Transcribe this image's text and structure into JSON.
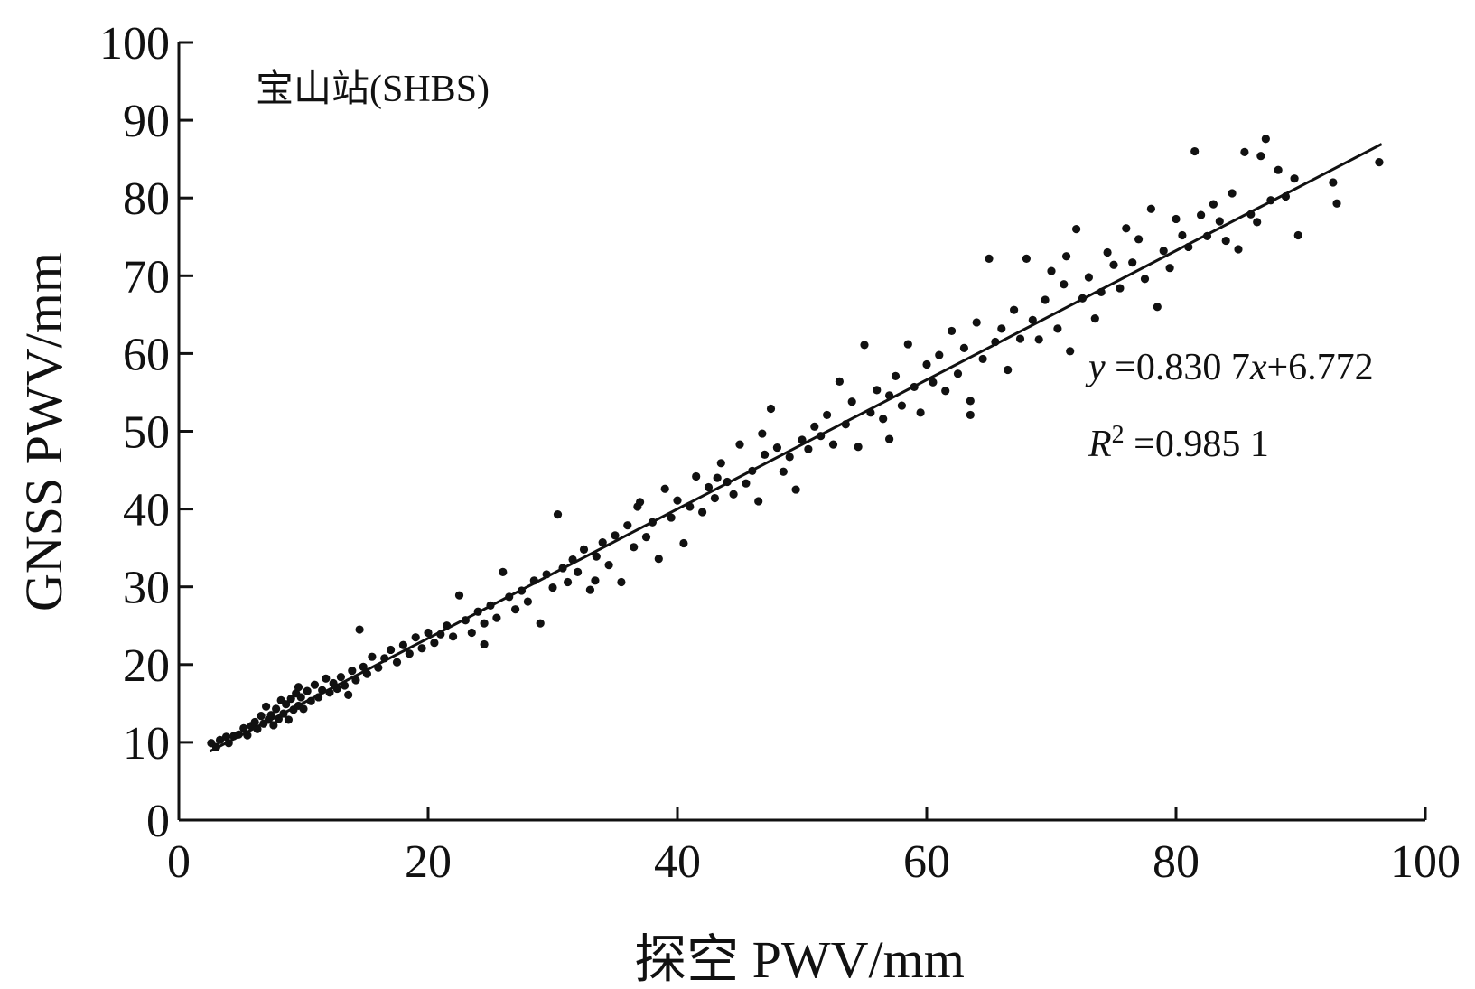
{
  "chart_data": {
    "type": "scatter",
    "title": "",
    "panel_label": "宝山站(SHBS)",
    "xlabel": "探空 PWV/mm",
    "ylabel": "GNSS PWV/mm",
    "xlim": [
      0,
      100
    ],
    "ylim": [
      0,
      100
    ],
    "x_ticks": [
      0,
      20,
      40,
      60,
      80,
      100
    ],
    "y_ticks": [
      0,
      10,
      20,
      30,
      40,
      50,
      60,
      70,
      80,
      90,
      100
    ],
    "grid": false,
    "fit": {
      "slope": 0.8307,
      "intercept": 6.772,
      "x_range": [
        2.5,
        96.5
      ],
      "equation_prefix": "y",
      "equation_body": " =0.830 7",
      "equation_var": "x",
      "equation_suffix": "+6.772",
      "r2_symbol": "R",
      "r2_exp": "2",
      "r2_value": " =0.985 1"
    },
    "points": [
      [
        2.6,
        9.9
      ],
      [
        3.0,
        9.4
      ],
      [
        3.3,
        10.3
      ],
      [
        3.8,
        10.7
      ],
      [
        4.0,
        9.9
      ],
      [
        4.4,
        10.8
      ],
      [
        4.8,
        11.0
      ],
      [
        5.2,
        11.8
      ],
      [
        5.5,
        10.9
      ],
      [
        5.8,
        12.1
      ],
      [
        6.1,
        12.6
      ],
      [
        6.3,
        11.7
      ],
      [
        6.6,
        13.4
      ],
      [
        6.8,
        12.4
      ],
      [
        7.0,
        14.6
      ],
      [
        7.2,
        12.9
      ],
      [
        7.4,
        13.5
      ],
      [
        7.6,
        12.2
      ],
      [
        7.8,
        14.3
      ],
      [
        8.0,
        13.0
      ],
      [
        8.2,
        15.4
      ],
      [
        8.4,
        13.7
      ],
      [
        8.6,
        14.9
      ],
      [
        8.8,
        12.9
      ],
      [
        9.0,
        15.6
      ],
      [
        9.2,
        14.2
      ],
      [
        9.4,
        16.3
      ],
      [
        9.6,
        14.7
      ],
      [
        9.8,
        15.8
      ],
      [
        10.0,
        14.3
      ],
      [
        10.3,
        16.6
      ],
      [
        10.6,
        15.3
      ],
      [
        10.9,
        17.4
      ],
      [
        11.2,
        15.8
      ],
      [
        11.5,
        16.7
      ],
      [
        11.8,
        18.2
      ],
      [
        12.1,
        16.4
      ],
      [
        12.4,
        17.6
      ],
      [
        12.7,
        16.9
      ],
      [
        13.0,
        18.4
      ],
      [
        13.3,
        17.3
      ],
      [
        13.6,
        16.1
      ],
      [
        13.9,
        19.2
      ],
      [
        14.2,
        18.0
      ],
      [
        14.5,
        24.5
      ],
      [
        14.8,
        19.7
      ],
      [
        15.1,
        18.8
      ],
      [
        15.5,
        21.0
      ],
      [
        16.0,
        19.6
      ],
      [
        16.5,
        20.8
      ],
      [
        17.0,
        21.9
      ],
      [
        17.5,
        20.3
      ],
      [
        18.0,
        22.5
      ],
      [
        18.5,
        21.4
      ],
      [
        19.0,
        23.5
      ],
      [
        19.5,
        22.1
      ],
      [
        20.0,
        24.1
      ],
      [
        20.5,
        22.8
      ],
      [
        21.0,
        23.9
      ],
      [
        21.5,
        25.0
      ],
      [
        22.0,
        23.6
      ],
      [
        22.5,
        28.9
      ],
      [
        23.0,
        25.7
      ],
      [
        23.5,
        24.1
      ],
      [
        24.0,
        26.8
      ],
      [
        24.5,
        25.3
      ],
      [
        25.0,
        27.6
      ],
      [
        25.5,
        26.0
      ],
      [
        26.0,
        31.9
      ],
      [
        26.5,
        28.7
      ],
      [
        27.0,
        27.1
      ],
      [
        27.5,
        29.5
      ],
      [
        28.0,
        28.1
      ],
      [
        28.5,
        30.8
      ],
      [
        29.0,
        25.3
      ],
      [
        29.5,
        31.6
      ],
      [
        30.0,
        29.9
      ],
      [
        30.4,
        39.3
      ],
      [
        30.8,
        32.4
      ],
      [
        31.2,
        30.6
      ],
      [
        31.6,
        33.5
      ],
      [
        32.0,
        31.9
      ],
      [
        32.5,
        34.8
      ],
      [
        33.0,
        29.6
      ],
      [
        33.5,
        33.9
      ],
      [
        34.0,
        35.7
      ],
      [
        34.5,
        32.8
      ],
      [
        35.0,
        36.6
      ],
      [
        35.5,
        30.6
      ],
      [
        36.0,
        37.9
      ],
      [
        36.5,
        35.1
      ],
      [
        37.0,
        40.9
      ],
      [
        37.5,
        36.4
      ],
      [
        38.0,
        38.3
      ],
      [
        38.5,
        33.6
      ],
      [
        39.0,
        42.6
      ],
      [
        39.5,
        38.9
      ],
      [
        40.0,
        41.1
      ],
      [
        40.5,
        35.6
      ],
      [
        41.0,
        40.3
      ],
      [
        41.5,
        44.2
      ],
      [
        42.0,
        39.6
      ],
      [
        42.5,
        42.8
      ],
      [
        43.0,
        41.4
      ],
      [
        43.5,
        45.9
      ],
      [
        44.0,
        43.5
      ],
      [
        44.5,
        41.9
      ],
      [
        45.0,
        48.3
      ],
      [
        45.5,
        43.3
      ],
      [
        46.0,
        44.9
      ],
      [
        46.5,
        41.0
      ],
      [
        47.0,
        47.0
      ],
      [
        47.5,
        52.9
      ],
      [
        48.0,
        47.9
      ],
      [
        48.5,
        44.8
      ],
      [
        49.0,
        46.7
      ],
      [
        49.5,
        42.5
      ],
      [
        50.0,
        48.9
      ],
      [
        50.5,
        47.7
      ],
      [
        51.0,
        50.6
      ],
      [
        51.5,
        49.4
      ],
      [
        52.0,
        52.1
      ],
      [
        52.5,
        48.3
      ],
      [
        53.0,
        56.4
      ],
      [
        53.5,
        50.9
      ],
      [
        54.0,
        53.8
      ],
      [
        54.5,
        48.0
      ],
      [
        55.0,
        61.1
      ],
      [
        55.5,
        52.4
      ],
      [
        56.0,
        55.3
      ],
      [
        56.5,
        51.6
      ],
      [
        57.0,
        54.6
      ],
      [
        57.5,
        57.1
      ],
      [
        58.0,
        53.3
      ],
      [
        58.5,
        61.2
      ],
      [
        59.0,
        55.7
      ],
      [
        59.5,
        52.4
      ],
      [
        60.0,
        58.6
      ],
      [
        60.5,
        56.3
      ],
      [
        61.0,
        59.8
      ],
      [
        61.5,
        55.2
      ],
      [
        62.0,
        62.9
      ],
      [
        62.5,
        57.4
      ],
      [
        63.0,
        60.7
      ],
      [
        63.5,
        52.1
      ],
      [
        64.0,
        64.0
      ],
      [
        64.5,
        59.3
      ],
      [
        65.0,
        72.2
      ],
      [
        65.5,
        61.5
      ],
      [
        66.0,
        63.2
      ],
      [
        66.5,
        57.9
      ],
      [
        67.0,
        65.6
      ],
      [
        67.5,
        61.9
      ],
      [
        68.0,
        72.2
      ],
      [
        68.5,
        64.3
      ],
      [
        69.0,
        61.8
      ],
      [
        69.5,
        66.9
      ],
      [
        70.0,
        70.6
      ],
      [
        70.5,
        63.2
      ],
      [
        71.0,
        68.9
      ],
      [
        71.5,
        60.3
      ],
      [
        72.0,
        76.0
      ],
      [
        72.5,
        67.1
      ],
      [
        73.0,
        69.8
      ],
      [
        73.5,
        64.5
      ],
      [
        74.0,
        67.9
      ],
      [
        74.5,
        73.0
      ],
      [
        75.0,
        71.4
      ],
      [
        75.5,
        68.4
      ],
      [
        76.0,
        76.1
      ],
      [
        76.5,
        71.7
      ],
      [
        77.0,
        74.7
      ],
      [
        77.5,
        69.6
      ],
      [
        78.0,
        78.6
      ],
      [
        78.5,
        66.0
      ],
      [
        79.0,
        73.2
      ],
      [
        79.5,
        71.0
      ],
      [
        80.0,
        77.3
      ],
      [
        80.5,
        75.2
      ],
      [
        81.0,
        73.7
      ],
      [
        81.5,
        86.0
      ],
      [
        82.0,
        77.8
      ],
      [
        82.5,
        75.1
      ],
      [
        83.0,
        79.2
      ],
      [
        83.5,
        77.0
      ],
      [
        84.0,
        74.5
      ],
      [
        84.5,
        80.6
      ],
      [
        85.0,
        73.4
      ],
      [
        85.5,
        85.9
      ],
      [
        86.0,
        77.9
      ],
      [
        86.5,
        76.9
      ],
      [
        86.8,
        85.4
      ],
      [
        87.2,
        87.6
      ],
      [
        87.6,
        79.7
      ],
      [
        88.2,
        83.6
      ],
      [
        88.8,
        80.2
      ],
      [
        89.5,
        82.5
      ],
      [
        89.8,
        75.2
      ],
      [
        92.6,
        82.0
      ],
      [
        92.9,
        79.3
      ],
      [
        96.3,
        84.6
      ],
      [
        36.8,
        40.3
      ],
      [
        43.2,
        44.0
      ],
      [
        57.0,
        49.0
      ],
      [
        63.5,
        53.9
      ],
      [
        71.2,
        72.5
      ],
      [
        9.6,
        17.1
      ],
      [
        24.5,
        22.6
      ],
      [
        33.4,
        30.8
      ],
      [
        46.8,
        49.7
      ]
    ]
  }
}
